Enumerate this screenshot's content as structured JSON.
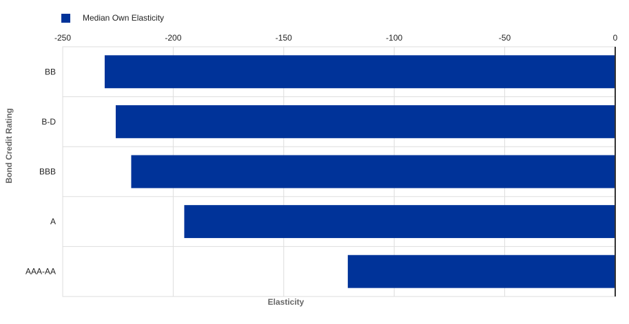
{
  "chart_data": {
    "type": "bar",
    "orientation": "horizontal",
    "categories": [
      "BB",
      "B-D",
      "BBB",
      "A",
      "AAA-AA"
    ],
    "series": [
      {
        "name": "Median Own Elasticity",
        "values": [
          -231,
          -226,
          -219,
          -195,
          -121
        ]
      }
    ],
    "xlabel": "Elasticity",
    "ylabel": "Bond Credit Rating",
    "xlim": [
      -250,
      0
    ],
    "xticks": [
      -250,
      -200,
      -150,
      -100,
      -50,
      0
    ],
    "xtick_labels": [
      "-250",
      "-200",
      "-150",
      "-100",
      "-50",
      "0"
    ],
    "x_axis_position": "top",
    "grid": true,
    "legend_position": "top-left",
    "colors": {
      "bar": "#003399",
      "grid": "#dddddd",
      "zero_line": "#333333"
    }
  }
}
